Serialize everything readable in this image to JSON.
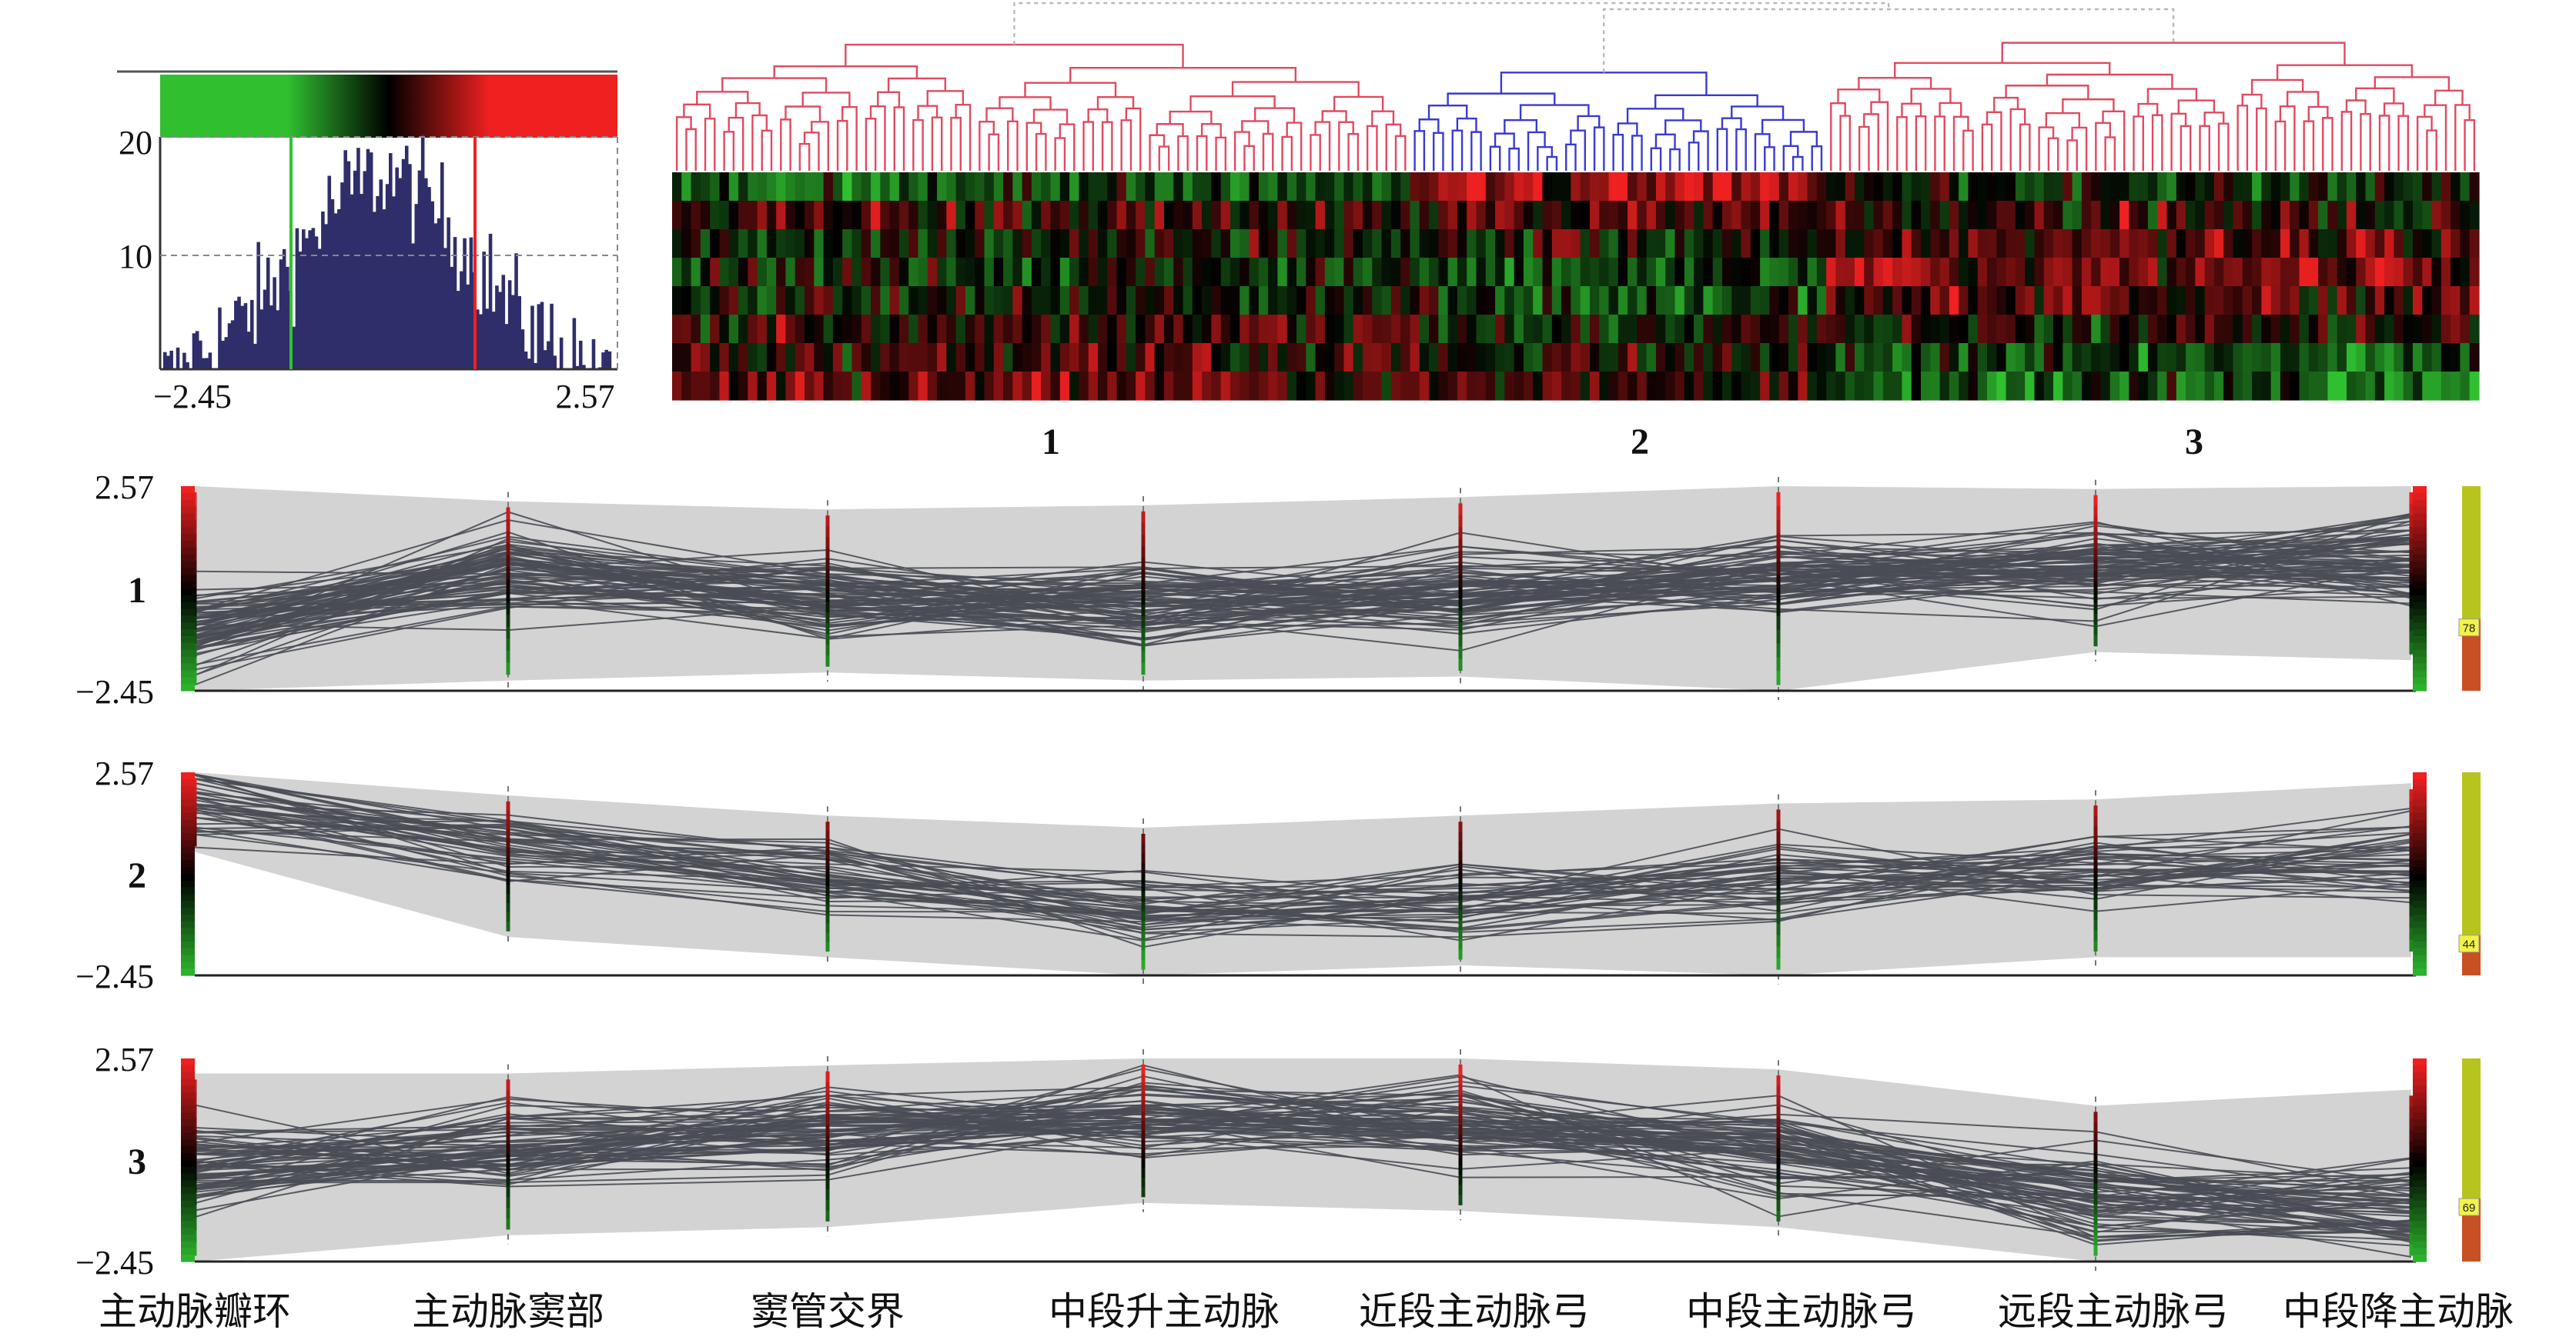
{
  "colors": {
    "low": "#2fbf2f",
    "mid": "#000000",
    "high": "#ee2020",
    "dendro_red": "#e04a60",
    "dendro_blue": "#3a3ad0",
    "hist_bar": "#2e2e6a",
    "band": "#d3d3d3",
    "line": "#4a4d55",
    "count_top": "#b8c41e",
    "count_bottom": "#c85024"
  },
  "histogram": {
    "xmin_label": "−2.45",
    "xmax_label": "2.57",
    "y_ticks": [
      "20",
      "10"
    ],
    "range": [
      -2.45,
      2.57
    ],
    "ylim": [
      0,
      26
    ],
    "green_cutoff": -0.8,
    "red_cutoff": 0.8
  },
  "heatmap": {
    "cluster_labels": [
      "1",
      "2",
      "3"
    ],
    "cluster_sizes": [
      78,
      44,
      69
    ],
    "rows": 8
  },
  "axis_labels": [
    "主动脉瓣环",
    "主动脉窦部",
    "窦管交界",
    "中段升主动脉",
    "近段主动脉弓",
    "中段主动脉弓",
    "远段主动脉弓",
    "中段降主动脉"
  ],
  "chart_data": {
    "type": "line",
    "title": "",
    "ylim": [
      -2.45,
      2.57
    ],
    "y_tick_labels": [
      "2.57",
      "−2.45"
    ],
    "x": [
      "主动脉瓣环",
      "主动脉窦部",
      "窦管交界",
      "中段升主动脉",
      "近段主动脉弓",
      "中段主动脉弓",
      "远段主动脉弓",
      "中段降主动脉"
    ],
    "clusters": [
      {
        "name": "1",
        "count": 78,
        "count_label": "78",
        "mean": [
          -1.0,
          0.4,
          -0.2,
          -0.3,
          -0.1,
          0.4,
          0.6,
          0.8
        ],
        "upper": [
          2.57,
          2.2,
          2.0,
          2.1,
          2.3,
          2.57,
          2.5,
          2.57
        ],
        "lower": [
          -2.45,
          -2.2,
          -2.0,
          -2.2,
          -2.1,
          -2.45,
          -1.5,
          -1.7
        ]
      },
      {
        "name": "2",
        "count": 44,
        "count_label": "44",
        "mean": [
          1.9,
          0.8,
          0.0,
          -0.8,
          -0.6,
          -0.1,
          0.1,
          0.5
        ],
        "upper": [
          2.57,
          2.0,
          1.5,
          1.2,
          1.5,
          1.8,
          1.9,
          2.3
        ],
        "lower": [
          0.6,
          -1.5,
          -2.0,
          -2.45,
          -2.2,
          -2.45,
          -2.0,
          -2.0
        ]
      },
      {
        "name": "3",
        "count": 69,
        "count_label": "69",
        "mean": [
          -0.2,
          0.4,
          0.8,
          1.2,
          0.9,
          0.3,
          -0.8,
          -1.1
        ],
        "upper": [
          2.2,
          2.2,
          2.4,
          2.57,
          2.57,
          2.3,
          1.4,
          1.8
        ],
        "lower": [
          -2.45,
          -1.8,
          -1.6,
          -1.0,
          -1.2,
          -1.6,
          -2.45,
          -2.45
        ]
      }
    ]
  }
}
